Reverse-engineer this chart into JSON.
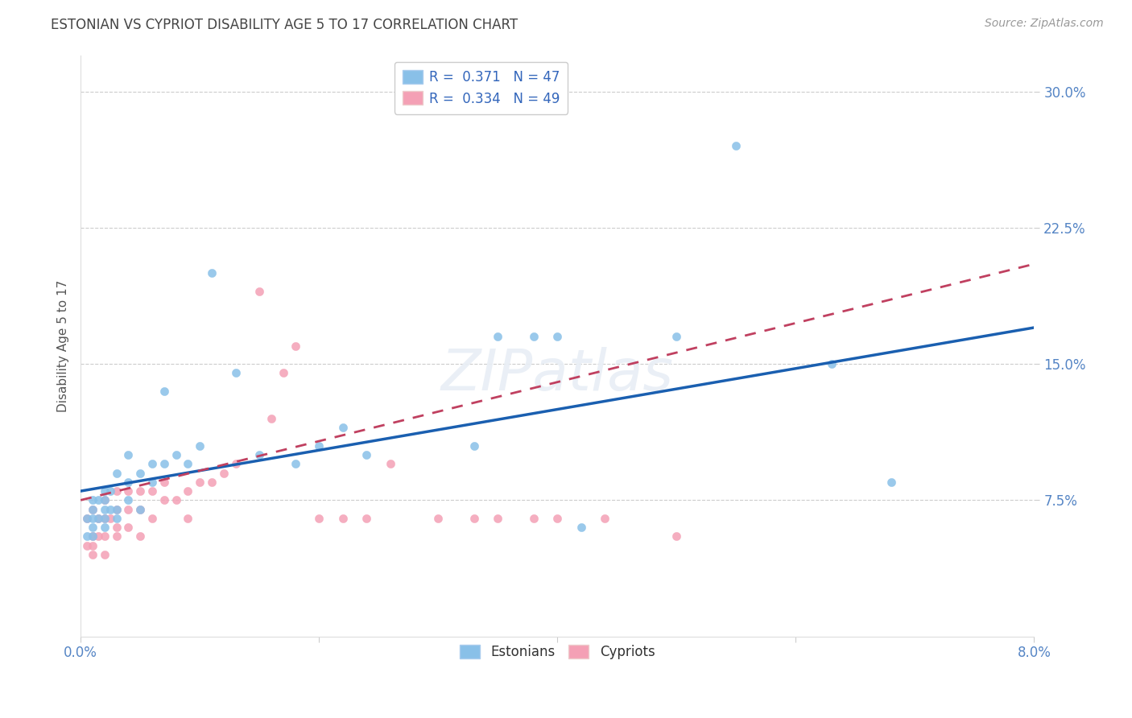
{
  "title": "ESTONIAN VS CYPRIOT DISABILITY AGE 5 TO 17 CORRELATION CHART",
  "source": "Source: ZipAtlas.com",
  "xlabel": "",
  "ylabel": "Disability Age 5 to 17",
  "xlim": [
    0.0,
    0.08
  ],
  "ylim": [
    0.0,
    0.32
  ],
  "xticks": [
    0.0,
    0.02,
    0.04,
    0.06,
    0.08
  ],
  "xtick_labels": [
    "0.0%",
    "",
    "",
    "",
    "8.0%"
  ],
  "yticks": [
    0.075,
    0.15,
    0.225,
    0.3
  ],
  "ytick_labels": [
    "7.5%",
    "15.0%",
    "22.5%",
    "30.0%"
  ],
  "grid_color": "#cccccc",
  "background_color": "#ffffff",
  "estonian_color": "#89c0e8",
  "cypriot_color": "#f4a0b5",
  "trend_estonian_color": "#1a5fb0",
  "trend_cypriot_color": "#c04060",
  "R_estonian": 0.371,
  "N_estonian": 47,
  "R_cypriot": 0.334,
  "N_cypriot": 49,
  "legend_label_estonian": "Estonians",
  "legend_label_cypriot": "Cypriots",
  "estonian_x": [
    0.0005,
    0.0005,
    0.001,
    0.001,
    0.001,
    0.001,
    0.001,
    0.0015,
    0.0015,
    0.002,
    0.002,
    0.002,
    0.002,
    0.002,
    0.0025,
    0.0025,
    0.003,
    0.003,
    0.003,
    0.004,
    0.004,
    0.004,
    0.005,
    0.005,
    0.006,
    0.006,
    0.007,
    0.007,
    0.008,
    0.009,
    0.01,
    0.011,
    0.013,
    0.015,
    0.018,
    0.02,
    0.022,
    0.024,
    0.033,
    0.035,
    0.038,
    0.04,
    0.042,
    0.05,
    0.055,
    0.063,
    0.068
  ],
  "estonian_y": [
    0.055,
    0.065,
    0.055,
    0.06,
    0.065,
    0.07,
    0.075,
    0.065,
    0.075,
    0.06,
    0.065,
    0.07,
    0.075,
    0.08,
    0.07,
    0.08,
    0.065,
    0.07,
    0.09,
    0.075,
    0.085,
    0.1,
    0.07,
    0.09,
    0.085,
    0.095,
    0.095,
    0.135,
    0.1,
    0.095,
    0.105,
    0.2,
    0.145,
    0.1,
    0.095,
    0.105,
    0.115,
    0.1,
    0.105,
    0.165,
    0.165,
    0.165,
    0.06,
    0.165,
    0.27,
    0.15,
    0.085
  ],
  "cypriot_x": [
    0.0005,
    0.0005,
    0.001,
    0.001,
    0.001,
    0.001,
    0.0015,
    0.0015,
    0.002,
    0.002,
    0.002,
    0.002,
    0.0025,
    0.003,
    0.003,
    0.003,
    0.003,
    0.004,
    0.004,
    0.004,
    0.005,
    0.005,
    0.005,
    0.006,
    0.006,
    0.007,
    0.007,
    0.008,
    0.009,
    0.009,
    0.01,
    0.011,
    0.012,
    0.013,
    0.015,
    0.016,
    0.017,
    0.018,
    0.02,
    0.022,
    0.024,
    0.026,
    0.03,
    0.033,
    0.035,
    0.038,
    0.04,
    0.044,
    0.05
  ],
  "cypriot_y": [
    0.05,
    0.065,
    0.045,
    0.05,
    0.055,
    0.07,
    0.055,
    0.065,
    0.045,
    0.055,
    0.065,
    0.075,
    0.065,
    0.055,
    0.06,
    0.07,
    0.08,
    0.06,
    0.07,
    0.08,
    0.055,
    0.07,
    0.08,
    0.065,
    0.08,
    0.075,
    0.085,
    0.075,
    0.065,
    0.08,
    0.085,
    0.085,
    0.09,
    0.095,
    0.19,
    0.12,
    0.145,
    0.16,
    0.065,
    0.065,
    0.065,
    0.095,
    0.065,
    0.065,
    0.065,
    0.065,
    0.065,
    0.065,
    0.055
  ],
  "trend_est_x0": 0.0,
  "trend_est_y0": 0.08,
  "trend_est_x1": 0.08,
  "trend_est_y1": 0.17,
  "trend_cyp_x0": 0.0,
  "trend_cyp_y0": 0.075,
  "trend_cyp_x1": 0.08,
  "trend_cyp_y1": 0.205
}
